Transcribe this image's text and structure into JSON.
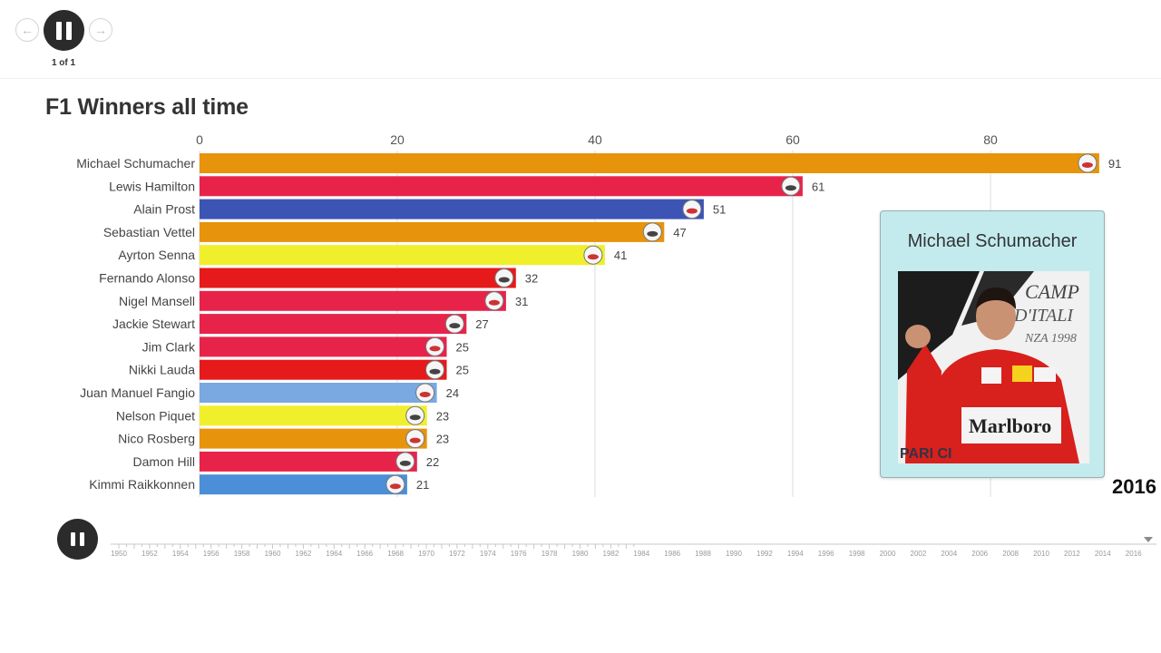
{
  "nav": {
    "page_count": "1 of 1",
    "prev_icon": "arrow-left-icon",
    "next_icon": "arrow-right-icon",
    "play_icon": "pause-icon"
  },
  "chart_data": {
    "type": "bar",
    "title": "F1 Winners all time",
    "xlabel": "",
    "ylabel": "",
    "xlim": [
      0,
      91
    ],
    "x_ticks": [
      0,
      20,
      40,
      60,
      80
    ],
    "grid": true,
    "categories": [
      "Michael Schumacher",
      "Lewis Hamilton",
      "Alain Prost",
      "Sebastian Vettel",
      "Ayrton Senna",
      "Fernando Alonso",
      "Nigel Mansell",
      "Jackie Stewart",
      "Jim Clark",
      "Nikki Lauda",
      "Juan Manuel Fangio",
      "Nelson Piquet",
      "Nico Rosberg",
      "Damon Hill",
      "Kimmi Raikkonnen"
    ],
    "values": [
      91,
      61,
      51,
      47,
      41,
      32,
      31,
      27,
      25,
      25,
      24,
      23,
      23,
      22,
      21
    ],
    "colors": [
      "#e8930c",
      "#e8234a",
      "#3c54b4",
      "#e8930c",
      "#f0ef2c",
      "#e61a1a",
      "#e8234a",
      "#e8234a",
      "#e8234a",
      "#e61a1a",
      "#7aa8e0",
      "#f0ef2c",
      "#e8930c",
      "#e8234a",
      "#4a8fd8"
    ],
    "year": "2016"
  },
  "popup": {
    "name": "Michael Schumacher",
    "photo_banner_lines": [
      "CAMP",
      "D'ITALI",
      "NZA 1998"
    ],
    "suit_text": "Marlboro",
    "bottom_text": "PARI CI"
  },
  "timeline": {
    "play_icon": "pause-icon",
    "years": [
      "1950",
      "1952",
      "1954",
      "1956",
      "1958",
      "1960",
      "1962",
      "1964",
      "1966",
      "1968",
      "1970",
      "1972",
      "1974",
      "1976",
      "1978",
      "1980",
      "1982",
      "1984",
      "1986",
      "1988",
      "1990",
      "1992",
      "1994",
      "1996",
      "1998",
      "2000",
      "2002",
      "2004",
      "2006",
      "2008",
      "2010",
      "2012",
      "2014",
      "2016"
    ]
  }
}
